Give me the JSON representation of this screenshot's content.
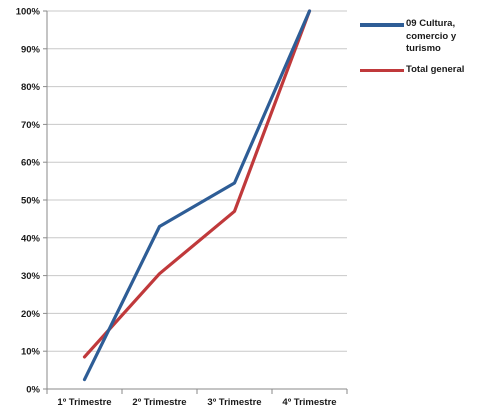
{
  "chart_data": {
    "type": "line",
    "categories": [
      "1º Trimestre",
      "2º Trimestre",
      "3º Trimestre",
      "4º Trimestre"
    ],
    "series": [
      {
        "name": "09  Cultura, comercio y turismo",
        "values": [
          2.5,
          43,
          54.5,
          100
        ],
        "color": "#2e5d96"
      },
      {
        "name": "Total general",
        "values": [
          8.5,
          30.5,
          47,
          100
        ],
        "color": "#c0393b"
      }
    ],
    "ylim": [
      0,
      100
    ],
    "yticks": [
      0,
      10,
      20,
      30,
      40,
      50,
      60,
      70,
      80,
      90,
      100
    ],
    "ytick_labels": [
      "0%",
      "10%",
      "20%",
      "30%",
      "40%",
      "50%",
      "60%",
      "70%",
      "80%",
      "90%",
      "100%"
    ],
    "grid": true,
    "legend_position": "right"
  }
}
